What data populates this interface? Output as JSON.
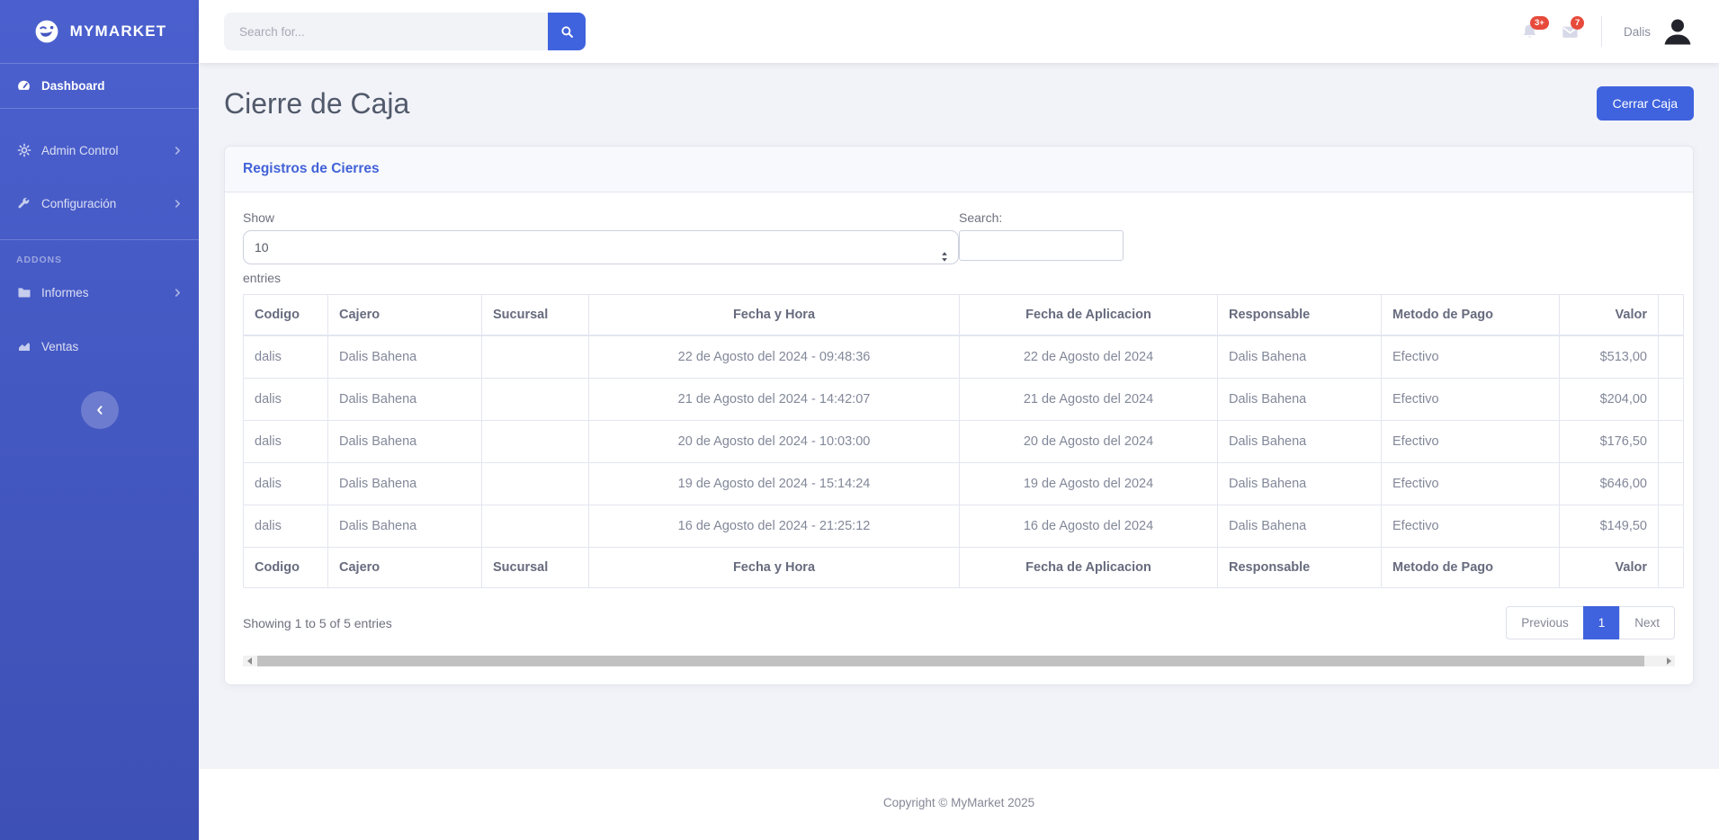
{
  "brand": {
    "name": "MYMARKET"
  },
  "topbar": {
    "search_placeholder": "Search for...",
    "alerts_badge": "3+",
    "messages_badge": "7",
    "user_name": "Dalis"
  },
  "sidebar": {
    "dashboard": "Dashboard",
    "admin_control": "Admin Control",
    "configuracion": "Configuración",
    "addons_heading": "ADDONS",
    "informes": "Informes",
    "ventas": "Ventas"
  },
  "page": {
    "title": "Cierre de Caja",
    "close_button": "Cerrar Caja"
  },
  "card": {
    "title": "Registros de Cierres",
    "show_label": "Show",
    "page_length": "10",
    "entries_label": "entries",
    "search_label": "Search:",
    "info": "Showing 1 to 5 of 5 entries",
    "pagination": {
      "previous": "Previous",
      "page": "1",
      "next": "Next"
    }
  },
  "table": {
    "columns": [
      "Codigo",
      "Cajero",
      "Sucursal",
      "Fecha y Hora",
      "Fecha de Aplicacion",
      "Responsable",
      "Metodo de Pago",
      "Valor",
      ""
    ],
    "rows": [
      [
        "dalis",
        "Dalis Bahena",
        "",
        "22 de Agosto del 2024 - 09:48:36",
        "22 de Agosto del 2024",
        "Dalis Bahena",
        "Efectivo",
        "$513,00",
        ""
      ],
      [
        "dalis",
        "Dalis Bahena",
        "",
        "21 de Agosto del 2024 - 14:42:07",
        "21 de Agosto del 2024",
        "Dalis Bahena",
        "Efectivo",
        "$204,00",
        ""
      ],
      [
        "dalis",
        "Dalis Bahena",
        "",
        "20 de Agosto del 2024 - 10:03:00",
        "20 de Agosto del 2024",
        "Dalis Bahena",
        "Efectivo",
        "$176,50",
        ""
      ],
      [
        "dalis",
        "Dalis Bahena",
        "",
        "19 de Agosto del 2024 - 15:14:24",
        "19 de Agosto del 2024",
        "Dalis Bahena",
        "Efectivo",
        "$646,00",
        ""
      ],
      [
        "dalis",
        "Dalis Bahena",
        "",
        "16 de Agosto del 2024 - 21:25:12",
        "16 de Agosto del 2024",
        "Dalis Bahena",
        "Efectivo",
        "$149,50",
        ""
      ]
    ]
  },
  "footer": {
    "copyright": "Copyright © MyMarket 2025"
  },
  "colors": {
    "primary": "#3f63de",
    "sidebar_top": "#4b60ce",
    "sidebar_bottom": "#3d50b5",
    "badge_red": "#e74a3b",
    "link_blue": "#4262d8"
  }
}
